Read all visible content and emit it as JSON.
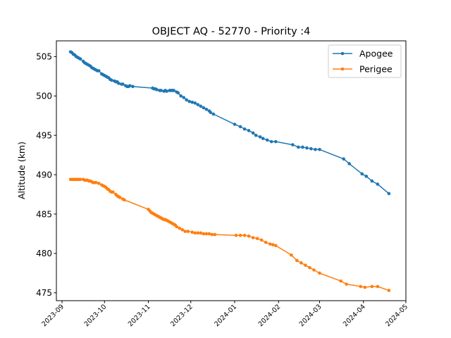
{
  "chart_data": {
    "type": "line",
    "title": "OBJECT AQ - 52770 - Priority :4",
    "xlabel": "",
    "ylabel": "Altitude (km)",
    "xlim": [
      "2023-08-28",
      "2024-05-01"
    ],
    "ylim": [
      474.0,
      507.0
    ],
    "yticks": [
      475,
      480,
      485,
      490,
      495,
      500,
      505
    ],
    "xticks": [
      "2023-09",
      "2023-10",
      "2023-11",
      "2023-12",
      "2024-01",
      "2024-02",
      "2024-03",
      "2024-04",
      "2024-05"
    ],
    "legend_position": "top-right",
    "grid": false,
    "series": [
      {
        "name": "Apogee",
        "color": "#1f77b4",
        "points": [
          [
            "2023-09-07",
            505.6
          ],
          [
            "2023-09-08",
            505.5
          ],
          [
            "2023-09-09",
            505.3
          ],
          [
            "2023-09-10",
            505.2
          ],
          [
            "2023-09-11",
            505.0
          ],
          [
            "2023-09-12",
            504.9
          ],
          [
            "2023-09-13",
            504.8
          ],
          [
            "2023-09-14",
            504.7
          ],
          [
            "2023-09-16",
            504.4
          ],
          [
            "2023-09-17",
            504.2
          ],
          [
            "2023-09-18",
            504.1
          ],
          [
            "2023-09-19",
            504.0
          ],
          [
            "2023-09-20",
            503.9
          ],
          [
            "2023-09-21",
            503.8
          ],
          [
            "2023-09-22",
            503.6
          ],
          [
            "2023-09-23",
            503.5
          ],
          [
            "2023-09-24",
            503.4
          ],
          [
            "2023-09-25",
            503.3
          ],
          [
            "2023-09-26",
            503.2
          ],
          [
            "2023-09-27",
            503.2
          ],
          [
            "2023-09-29",
            502.8
          ],
          [
            "2023-09-30",
            502.7
          ],
          [
            "2023-10-01",
            502.6
          ],
          [
            "2023-10-02",
            502.5
          ],
          [
            "2023-10-03",
            502.4
          ],
          [
            "2023-10-04",
            502.3
          ],
          [
            "2023-10-05",
            502.1
          ],
          [
            "2023-10-06",
            502.0
          ],
          [
            "2023-10-08",
            501.9
          ],
          [
            "2023-10-09",
            501.8
          ],
          [
            "2023-10-10",
            501.8
          ],
          [
            "2023-10-11",
            501.6
          ],
          [
            "2023-10-13",
            501.5
          ],
          [
            "2023-10-14",
            501.5
          ],
          [
            "2023-10-16",
            501.3
          ],
          [
            "2023-10-17",
            501.2
          ],
          [
            "2023-10-18",
            501.2
          ],
          [
            "2023-10-19",
            501.3
          ],
          [
            "2023-10-21",
            501.2
          ],
          [
            "2023-11-04",
            501.0
          ],
          [
            "2023-11-05",
            500.9
          ],
          [
            "2023-11-06",
            500.9
          ],
          [
            "2023-11-07",
            500.8
          ],
          [
            "2023-11-09",
            500.7
          ],
          [
            "2023-11-10",
            500.7
          ],
          [
            "2023-11-12",
            500.6
          ],
          [
            "2023-11-13",
            500.7
          ],
          [
            "2023-11-14",
            500.6
          ],
          [
            "2023-11-16",
            500.7
          ],
          [
            "2023-11-17",
            500.7
          ],
          [
            "2023-11-18",
            500.7
          ],
          [
            "2023-11-19",
            500.7
          ],
          [
            "2023-11-21",
            500.5
          ],
          [
            "2023-11-22",
            500.4
          ],
          [
            "2023-11-24",
            500.0
          ],
          [
            "2023-11-26",
            499.8
          ],
          [
            "2023-11-28",
            499.5
          ],
          [
            "2023-11-30",
            499.3
          ],
          [
            "2023-12-02",
            499.2
          ],
          [
            "2023-12-04",
            499.1
          ],
          [
            "2023-12-06",
            498.9
          ],
          [
            "2023-12-08",
            498.7
          ],
          [
            "2023-12-10",
            498.5
          ],
          [
            "2023-12-12",
            498.3
          ],
          [
            "2023-12-14",
            498.1
          ],
          [
            "2023-12-15",
            497.9
          ],
          [
            "2023-12-17",
            497.7
          ],
          [
            "2024-01-01",
            496.4
          ],
          [
            "2024-01-05",
            496.1
          ],
          [
            "2024-01-08",
            495.8
          ],
          [
            "2024-01-11",
            495.6
          ],
          [
            "2024-01-14",
            495.3
          ],
          [
            "2024-01-16",
            495.0
          ],
          [
            "2024-01-19",
            494.8
          ],
          [
            "2024-01-21",
            494.6
          ],
          [
            "2024-01-24",
            494.4
          ],
          [
            "2024-01-27",
            494.2
          ],
          [
            "2024-01-30",
            494.2
          ],
          [
            "2024-02-11",
            493.8
          ],
          [
            "2024-02-15",
            493.5
          ],
          [
            "2024-02-18",
            493.5
          ],
          [
            "2024-02-21",
            493.4
          ],
          [
            "2024-02-24",
            493.3
          ],
          [
            "2024-02-27",
            493.2
          ],
          [
            "2024-03-01",
            493.2
          ],
          [
            "2024-03-18",
            492.0
          ],
          [
            "2024-03-22",
            491.4
          ],
          [
            "2024-03-31",
            490.1
          ],
          [
            "2024-04-03",
            489.8
          ],
          [
            "2024-04-07",
            489.2
          ],
          [
            "2024-04-11",
            488.8
          ],
          [
            "2024-04-19",
            487.6
          ]
        ]
      },
      {
        "name": "Perigee",
        "color": "#ff7f0e",
        "points": [
          [
            "2023-09-07",
            489.4
          ],
          [
            "2023-09-08",
            489.4
          ],
          [
            "2023-09-09",
            489.4
          ],
          [
            "2023-09-10",
            489.4
          ],
          [
            "2023-09-11",
            489.4
          ],
          [
            "2023-09-12",
            489.4
          ],
          [
            "2023-09-13",
            489.4
          ],
          [
            "2023-09-14",
            489.4
          ],
          [
            "2023-09-16",
            489.4
          ],
          [
            "2023-09-17",
            489.3
          ],
          [
            "2023-09-18",
            489.3
          ],
          [
            "2023-09-19",
            489.3
          ],
          [
            "2023-09-20",
            489.2
          ],
          [
            "2023-09-21",
            489.2
          ],
          [
            "2023-09-22",
            489.1
          ],
          [
            "2023-09-23",
            489.0
          ],
          [
            "2023-09-24",
            489.0
          ],
          [
            "2023-09-25",
            489.0
          ],
          [
            "2023-09-27",
            488.9
          ],
          [
            "2023-09-29",
            488.7
          ],
          [
            "2023-09-30",
            488.6
          ],
          [
            "2023-10-01",
            488.5
          ],
          [
            "2023-10-02",
            488.4
          ],
          [
            "2023-10-03",
            488.2
          ],
          [
            "2023-10-04",
            488.1
          ],
          [
            "2023-10-05",
            487.9
          ],
          [
            "2023-10-06",
            487.8
          ],
          [
            "2023-10-07",
            487.8
          ],
          [
            "2023-10-09",
            487.5
          ],
          [
            "2023-10-10",
            487.3
          ],
          [
            "2023-10-11",
            487.2
          ],
          [
            "2023-10-12",
            487.1
          ],
          [
            "2023-10-14",
            486.9
          ],
          [
            "2023-10-15",
            486.8
          ],
          [
            "2023-11-01",
            485.6
          ],
          [
            "2023-11-02",
            485.4
          ],
          [
            "2023-11-03",
            485.2
          ],
          [
            "2023-11-04",
            485.1
          ],
          [
            "2023-11-05",
            485.0
          ],
          [
            "2023-11-06",
            484.9
          ],
          [
            "2023-11-07",
            484.8
          ],
          [
            "2023-11-08",
            484.7
          ],
          [
            "2023-11-09",
            484.6
          ],
          [
            "2023-11-10",
            484.5
          ],
          [
            "2023-11-11",
            484.4
          ],
          [
            "2023-11-12",
            484.3
          ],
          [
            "2023-11-13",
            484.3
          ],
          [
            "2023-11-14",
            484.2
          ],
          [
            "2023-11-15",
            484.1
          ],
          [
            "2023-11-16",
            484.0
          ],
          [
            "2023-11-17",
            483.9
          ],
          [
            "2023-11-18",
            483.8
          ],
          [
            "2023-11-19",
            483.7
          ],
          [
            "2023-11-20",
            483.6
          ],
          [
            "2023-11-21",
            483.4
          ],
          [
            "2023-11-23",
            483.2
          ],
          [
            "2023-11-25",
            483.0
          ],
          [
            "2023-11-27",
            482.8
          ],
          [
            "2023-11-29",
            482.8
          ],
          [
            "2023-12-02",
            482.7
          ],
          [
            "2023-12-04",
            482.6
          ],
          [
            "2023-12-06",
            482.6
          ],
          [
            "2023-12-08",
            482.6
          ],
          [
            "2023-12-10",
            482.5
          ],
          [
            "2023-12-12",
            482.5
          ],
          [
            "2023-12-14",
            482.5
          ],
          [
            "2023-12-16",
            482.4
          ],
          [
            "2023-12-18",
            482.4
          ],
          [
            "2024-01-02",
            482.3
          ],
          [
            "2024-01-05",
            482.3
          ],
          [
            "2024-01-08",
            482.3
          ],
          [
            "2024-01-11",
            482.2
          ],
          [
            "2024-01-14",
            482.0
          ],
          [
            "2024-01-17",
            481.9
          ],
          [
            "2024-01-20",
            481.7
          ],
          [
            "2024-01-23",
            481.4
          ],
          [
            "2024-01-26",
            481.2
          ],
          [
            "2024-01-28",
            481.1
          ],
          [
            "2024-01-30",
            481.0
          ],
          [
            "2024-02-10",
            479.8
          ],
          [
            "2024-02-14",
            479.1
          ],
          [
            "2024-02-17",
            478.8
          ],
          [
            "2024-02-20",
            478.5
          ],
          [
            "2024-02-23",
            478.2
          ],
          [
            "2024-02-26",
            477.9
          ],
          [
            "2024-03-01",
            477.5
          ],
          [
            "2024-03-16",
            476.5
          ],
          [
            "2024-03-20",
            476.1
          ],
          [
            "2024-03-30",
            475.8
          ],
          [
            "2024-04-02",
            475.7
          ],
          [
            "2024-04-07",
            475.8
          ],
          [
            "2024-04-11",
            475.8
          ],
          [
            "2024-04-19",
            475.3
          ]
        ]
      }
    ]
  }
}
